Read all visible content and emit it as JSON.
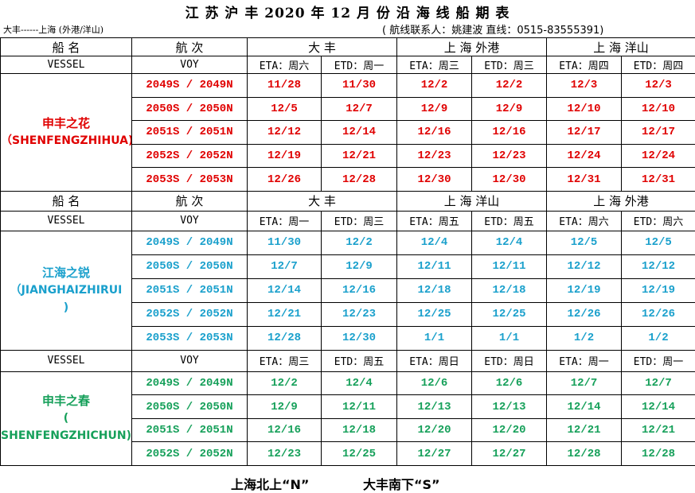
{
  "title": "江 苏 沪 丰 2020 年 12 月 份 沿 海 线 船 期 表",
  "route": "大丰------上海 (外港/洋山)",
  "contact": "( 航线联系人：姚建波 直线：0515-83555391)",
  "sections": [
    {
      "header": {
        "ship": "船 名",
        "voy": "航 次",
        "ports": [
          "大 丰",
          "上 海 外港",
          "上 海 洋山"
        ]
      },
      "subheader": [
        "VESSEL",
        "VOY",
        "ETA：周六",
        "ETD：周一",
        "ETA：周三",
        "ETD：周三",
        "ETA：周四",
        "ETD：周四"
      ],
      "ship_name": [
        "申丰之花",
        "（SHENFENGZHIHUA)"
      ],
      "rows": [
        [
          "2049S / 2049N",
          "11/28",
          "11/30",
          "12/2",
          "12/2",
          "12/3",
          "12/3"
        ],
        [
          "2050S / 2050N",
          "12/5",
          "12/7",
          "12/9",
          "12/9",
          "12/10",
          "12/10"
        ],
        [
          "2051S / 2051N",
          "12/12",
          "12/14",
          "12/16",
          "12/16",
          "12/17",
          "12/17"
        ],
        [
          "2052S / 2052N",
          "12/19",
          "12/21",
          "12/23",
          "12/23",
          "12/24",
          "12/24"
        ],
        [
          "2053S / 2053N",
          "12/26",
          "12/28",
          "12/30",
          "12/30",
          "12/31",
          "12/31"
        ]
      ]
    },
    {
      "header": {
        "ship": "船 名",
        "voy": "航 次",
        "ports": [
          "大 丰",
          "上 海 洋山",
          "上 海 外港"
        ]
      },
      "subheader": [
        "VESSEL",
        "VOY",
        "ETA：周一",
        "ETD：周三",
        "ETA：周五",
        "ETD：周五",
        "ETA：周六",
        "ETD：周六"
      ],
      "ship_name": [
        "江海之锐",
        "（JIANGHAIZHIRUI",
        ")"
      ],
      "rows": [
        [
          "2049S / 2049N",
          "11/30",
          "12/2",
          "12/4",
          "12/4",
          "12/5",
          "12/5"
        ],
        [
          "2050S / 2050N",
          "12/7",
          "12/9",
          "12/11",
          "12/11",
          "12/12",
          "12/12"
        ],
        [
          "2051S / 2051N",
          "12/14",
          "12/16",
          "12/18",
          "12/18",
          "12/19",
          "12/19"
        ],
        [
          "2052S / 2052N",
          "12/21",
          "12/23",
          "12/25",
          "12/25",
          "12/26",
          "12/26"
        ],
        [
          "2053S / 2053N",
          "12/28",
          "12/30",
          "1/1",
          "1/1",
          "1/2",
          "1/2"
        ]
      ]
    },
    {
      "subheader": [
        "VESSEL",
        "VOY",
        "ETA：周三",
        "ETD：周五",
        "ETA：周日",
        "ETD：周日",
        "ETA：周一",
        "ETD：周一"
      ],
      "ship_name": [
        "申丰之春",
        "(",
        "SHENFENGZHICHUN)"
      ],
      "rows": [
        [
          "2049S / 2049N",
          "12/2",
          "12/4",
          "12/6",
          "12/6",
          "12/7",
          "12/7"
        ],
        [
          "2050S / 2050N",
          "12/9",
          "12/11",
          "12/13",
          "12/13",
          "12/14",
          "12/14"
        ],
        [
          "2051S / 2051N",
          "12/16",
          "12/18",
          "12/20",
          "12/20",
          "12/21",
          "12/21"
        ],
        [
          "2052S / 2052N",
          "12/23",
          "12/25",
          "12/27",
          "12/27",
          "12/28",
          "12/28"
        ]
      ]
    }
  ],
  "footer": [
    "上海北上“N”",
    "大丰南下“S”"
  ]
}
